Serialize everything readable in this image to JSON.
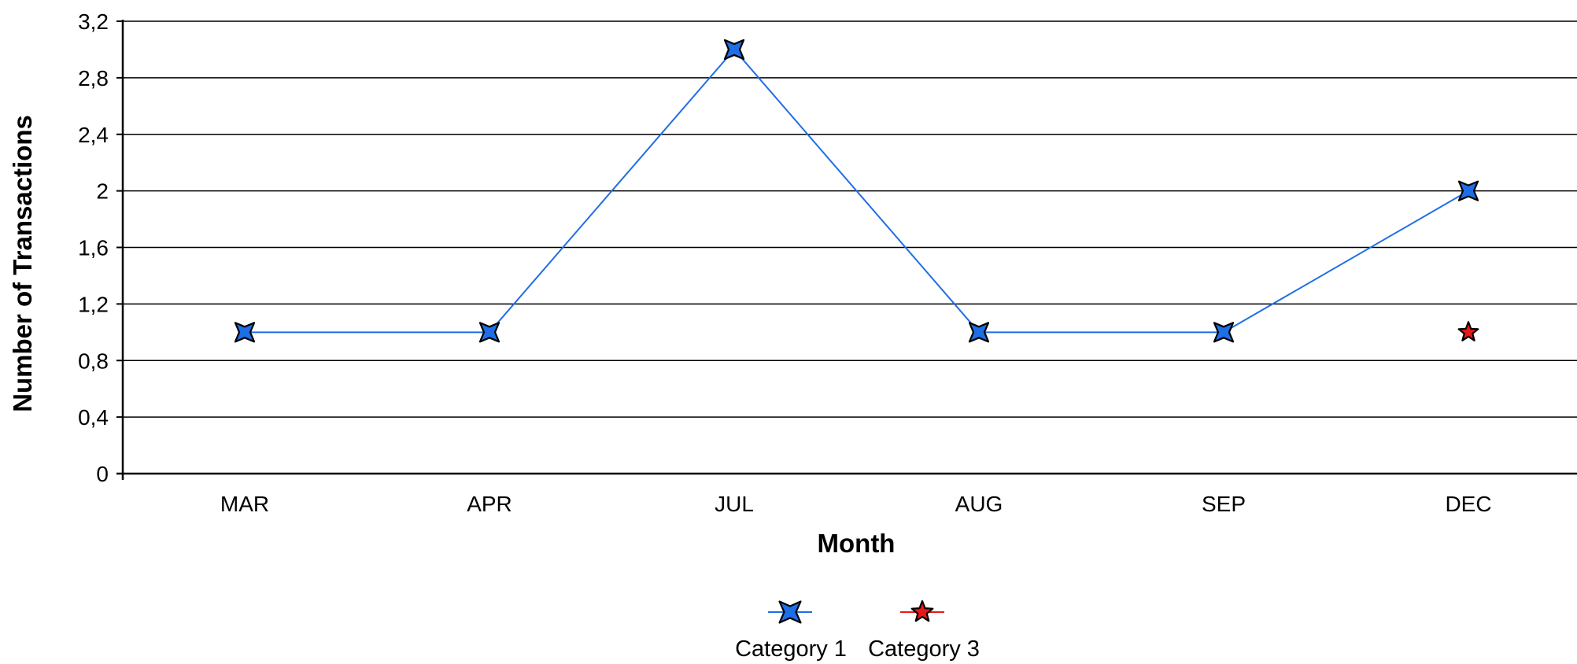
{
  "chart_data": {
    "type": "line",
    "categories": [
      "MAR",
      "APR",
      "JUL",
      "AUG",
      "SEP",
      "DEC"
    ],
    "series": [
      {
        "name": "Category 1",
        "values": [
          1,
          1,
          3,
          1,
          1,
          2
        ],
        "color": "#1e6ee6",
        "marker": "four-point-star",
        "line": true
      },
      {
        "name": "Category 3",
        "values": [
          null,
          null,
          null,
          null,
          null,
          1
        ],
        "color": "#e81818",
        "marker": "five-point-star",
        "line": false
      }
    ],
    "xlabel": "Month",
    "ylabel": "Number of Transactions",
    "ylim": [
      0,
      3.2
    ],
    "yticks": [
      0,
      0.4,
      0.8,
      1.2,
      1.6,
      2,
      2.4,
      2.8,
      3.2
    ],
    "ytick_labels": [
      "0",
      "0,4",
      "0,8",
      "1,2",
      "1,6",
      "2",
      "2,4",
      "2,8",
      "3,2"
    ],
    "grid": true,
    "legend_position": "bottom-center"
  }
}
